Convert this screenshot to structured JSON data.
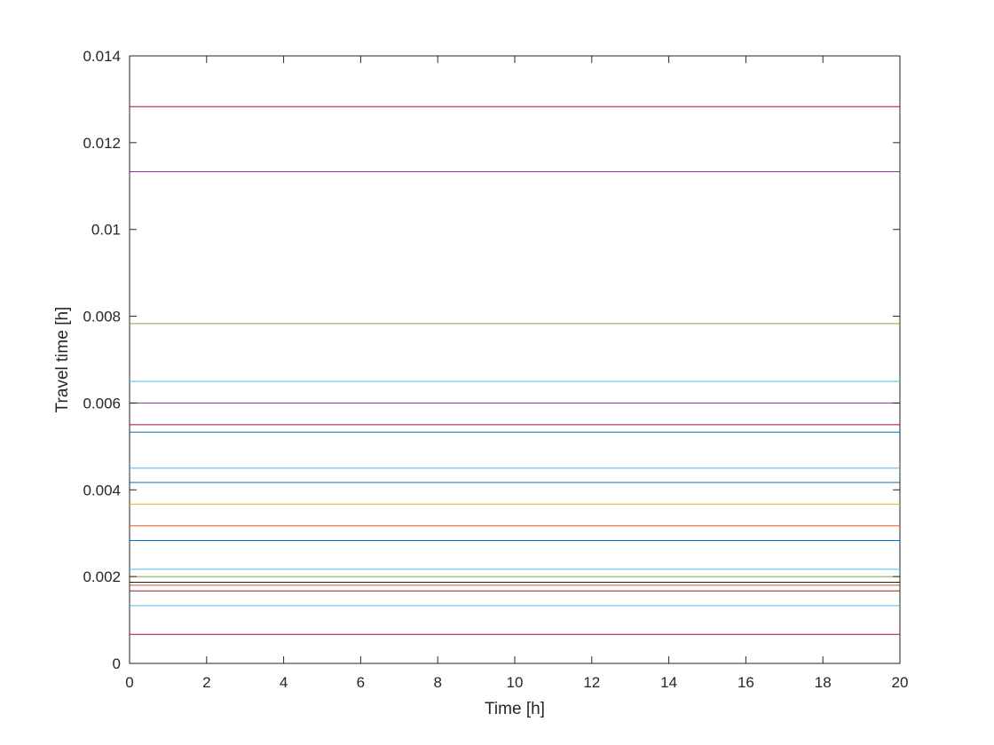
{
  "chart_data": {
    "type": "line",
    "title": "",
    "xlabel": "Time [h]",
    "ylabel": "Travel time [h]",
    "xlim": [
      0,
      20
    ],
    "ylim": [
      0,
      0.014
    ],
    "grid": false,
    "legend": "none",
    "x_ticks": [
      "0",
      "2",
      "4",
      "6",
      "8",
      "10",
      "12",
      "14",
      "16",
      "18",
      "20"
    ],
    "y_ticks": [
      "0",
      "0.002",
      "0.004",
      "0.006",
      "0.008",
      "0.01",
      "0.012",
      "0.014"
    ],
    "x": [
      0,
      20
    ],
    "series": [
      {
        "color": "#A2142F",
        "values": [
          0.01283,
          0.01283
        ]
      },
      {
        "color": "#7E2F8E",
        "values": [
          0.01133,
          0.01133
        ]
      },
      {
        "color": "#77AC30",
        "values": [
          0.00783,
          0.00783
        ]
      },
      {
        "color": "#4DBEEE",
        "values": [
          0.0065,
          0.0065
        ]
      },
      {
        "color": "#7E2F8E",
        "values": [
          0.006,
          0.006
        ]
      },
      {
        "color": "#A2142F",
        "values": [
          0.0055,
          0.0055
        ]
      },
      {
        "color": "#0072BD",
        "values": [
          0.00533,
          0.00533
        ]
      },
      {
        "color": "#4DBEEE",
        "values": [
          0.0045,
          0.0045
        ]
      },
      {
        "color": "#0072BD",
        "values": [
          0.00417,
          0.00417
        ]
      },
      {
        "color": "#EDB120",
        "values": [
          0.00367,
          0.00367
        ]
      },
      {
        "color": "#D95319",
        "values": [
          0.00317,
          0.00317
        ]
      },
      {
        "color": "#0072BD",
        "values": [
          0.00283,
          0.00283
        ]
      },
      {
        "color": "#4DBEEE",
        "values": [
          0.00217,
          0.00217
        ]
      },
      {
        "color": "#77AC30",
        "values": [
          0.002,
          0.002
        ]
      },
      {
        "color": "#222222",
        "values": [
          0.00187,
          0.00187
        ]
      },
      {
        "color": "#D95319",
        "values": [
          0.0018,
          0.0018
        ]
      },
      {
        "color": "#A2142F",
        "values": [
          0.00167,
          0.00167
        ]
      },
      {
        "color": "#4DBEEE",
        "values": [
          0.00133,
          0.00133
        ]
      },
      {
        "color": "#A2142F",
        "values": [
          0.00067,
          0.00067
        ]
      }
    ]
  }
}
